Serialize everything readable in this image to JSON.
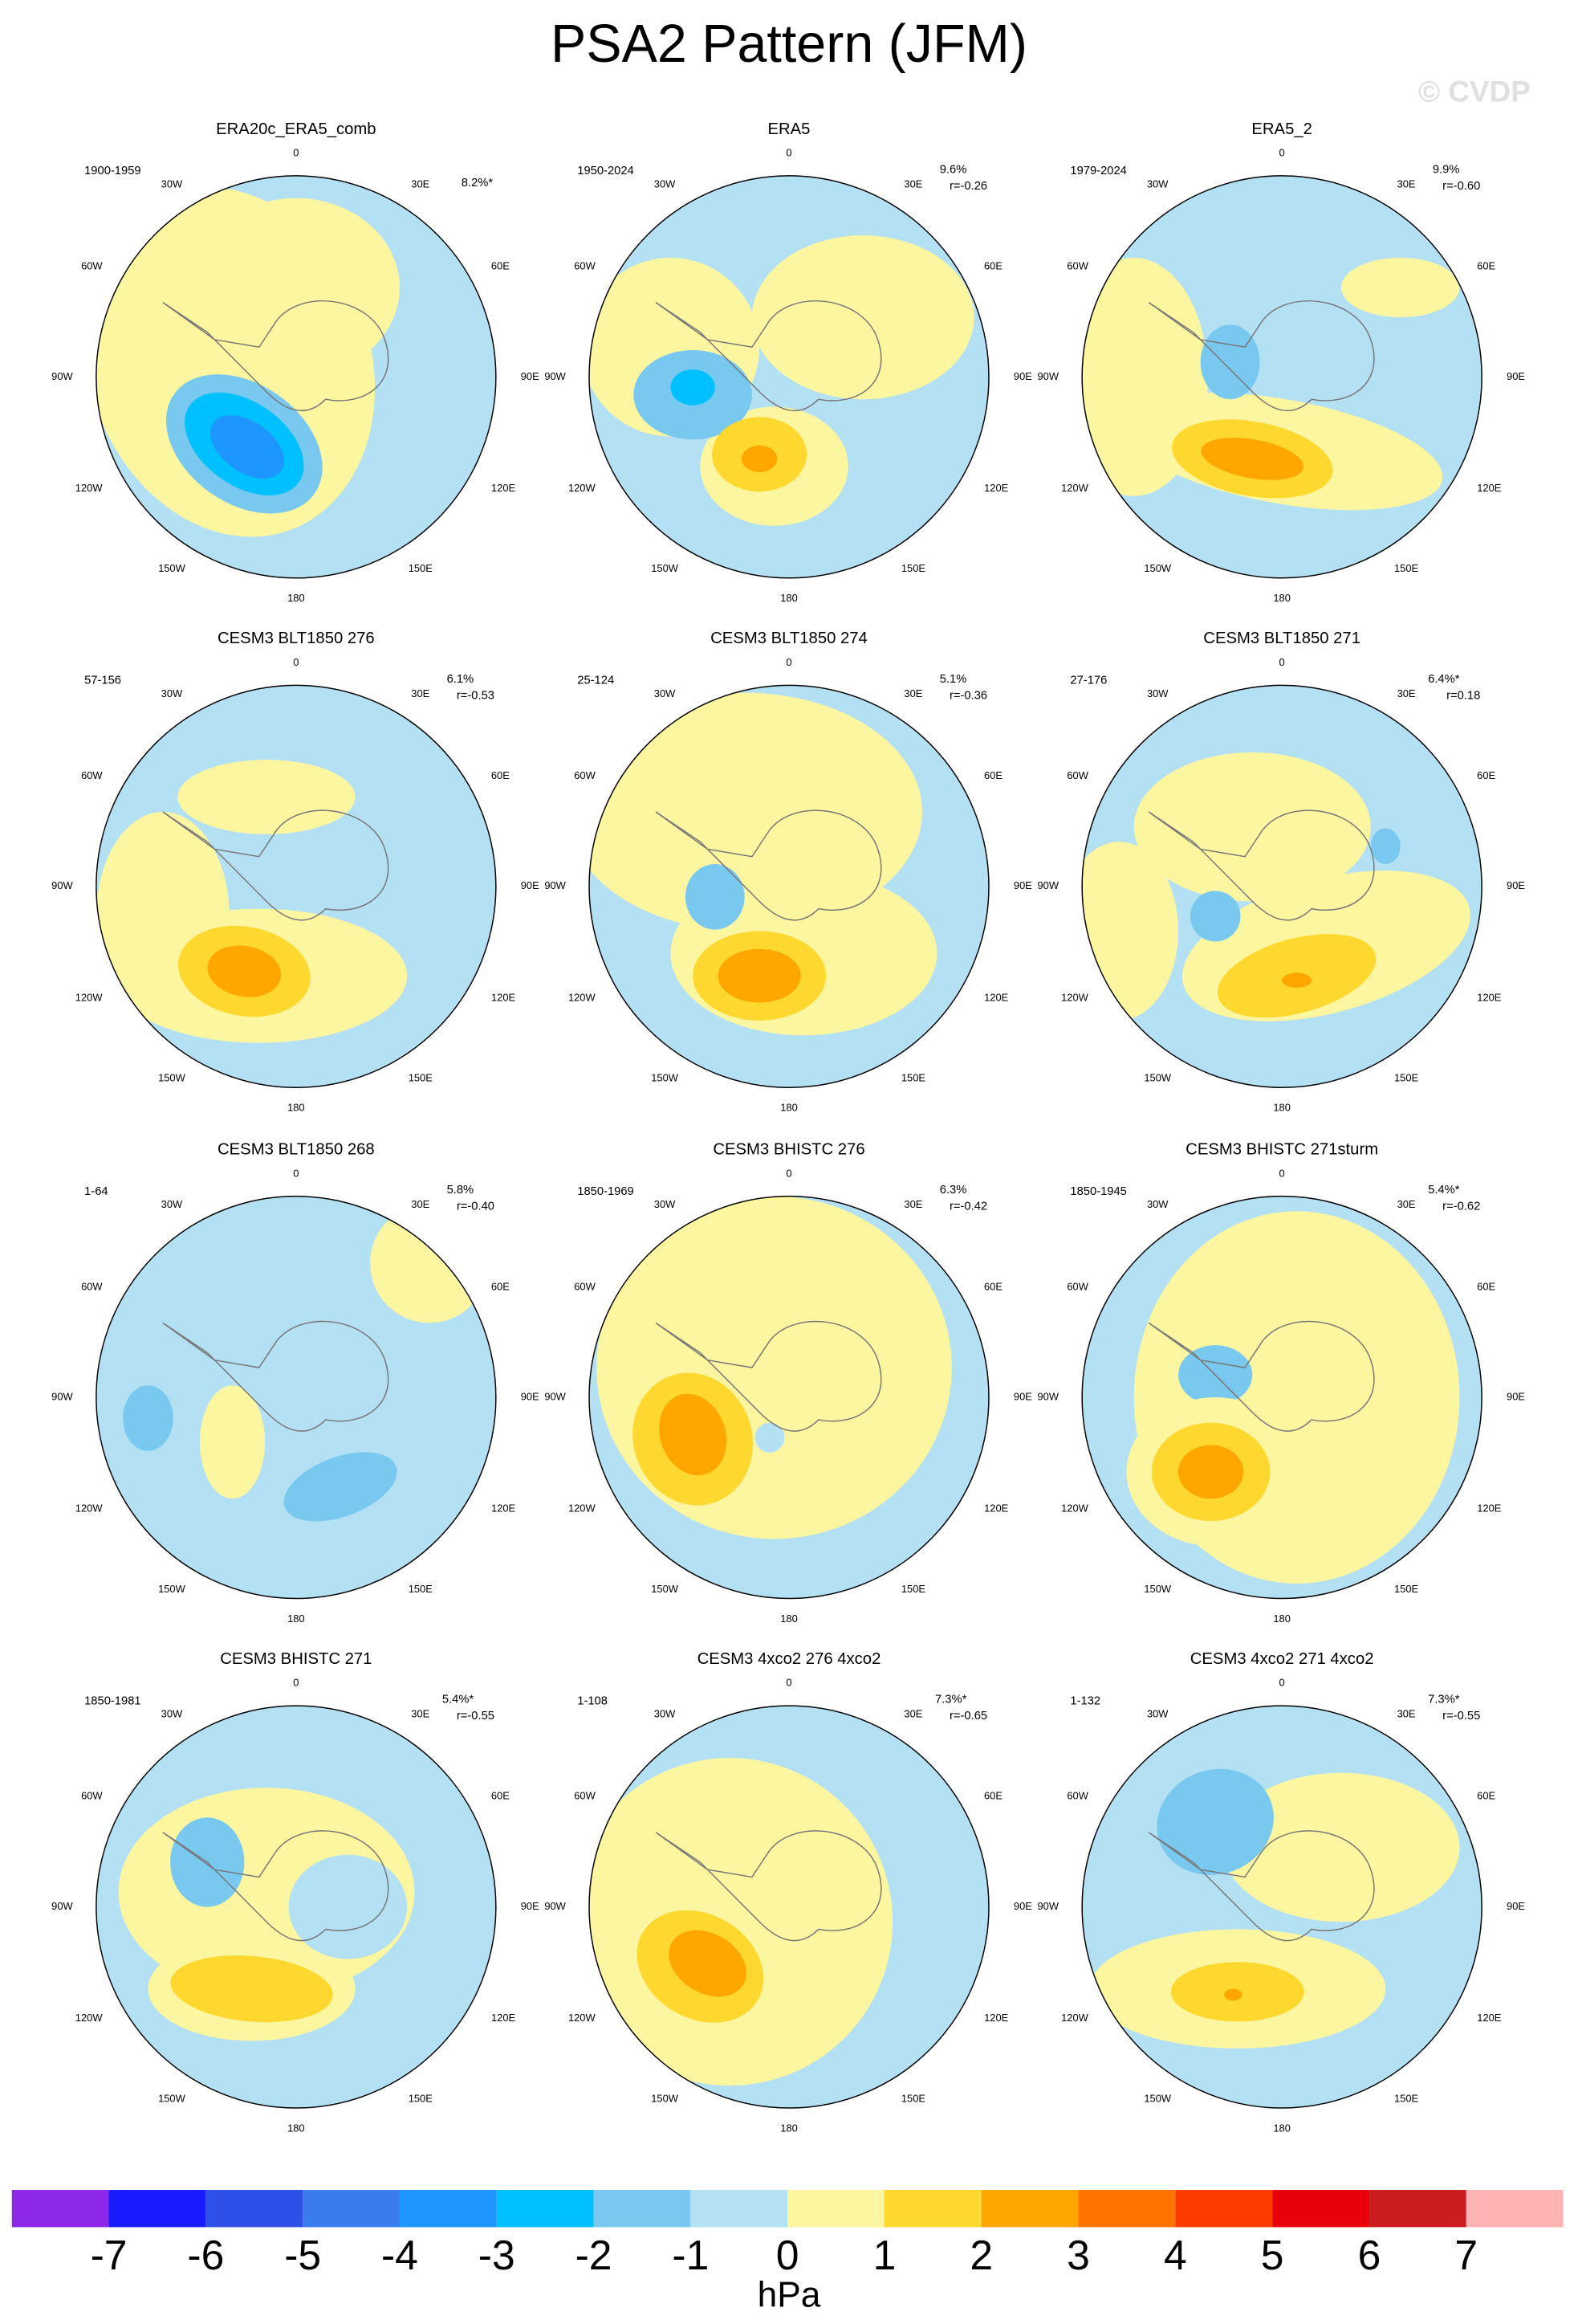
{
  "title": "PSA2 Pattern (JFM)",
  "watermark": "© CVDP",
  "longitude_labels": [
    "0",
    "30E",
    "60E",
    "90E",
    "120E",
    "150E",
    "180",
    "150W",
    "120W",
    "90W",
    "60W",
    "30W"
  ],
  "panels": [
    {
      "title": "ERA20c_ERA5_comb",
      "period": "1900-1959",
      "pct": "8.2%*"
    },
    {
      "title": "ERA5",
      "period": "1950-2024",
      "pct": "9.6%",
      "r": "r=-0.26"
    },
    {
      "title": "ERA5_2",
      "period": "1979-2024",
      "pct": "9.9%",
      "r": "r=-0.60"
    },
    {
      "title": "CESM3 BLT1850 276",
      "period": "57-156",
      "pct": "6.1%",
      "r": "r=-0.53"
    },
    {
      "title": "CESM3 BLT1850 274",
      "period": "25-124",
      "pct": "5.1%",
      "r": "r=-0.36"
    },
    {
      "title": "CESM3 BLT1850 271",
      "period": "27-176",
      "pct": "6.4%*",
      "r": "r=0.18"
    },
    {
      "title": "CESM3 BLT1850 268",
      "period": "1-64",
      "pct": "5.8%",
      "r": "r=-0.40"
    },
    {
      "title": "CESM3 BHISTC 276",
      "period": "1850-1969",
      "pct": "6.3%",
      "r": "r=-0.42"
    },
    {
      "title": "CESM3 BHISTC 271sturm",
      "period": "1850-1945",
      "pct": "5.4%*",
      "r": "r=-0.62"
    },
    {
      "title": "CESM3 BHISTC 271",
      "period": "1850-1981",
      "pct": "5.4%*",
      "r": "r=-0.55"
    },
    {
      "title": "CESM3 4xco2 276 4xco2",
      "period": "1-108",
      "pct": "7.3%*",
      "r": "r=-0.65"
    },
    {
      "title": "CESM3 4xco2 271 4xco2",
      "period": "1-132",
      "pct": "7.3%*",
      "r": "r=-0.55"
    }
  ],
  "colorbar": {
    "colors": [
      "#8c28e6",
      "#1a1aff",
      "#2e4fe8",
      "#3a7bee",
      "#1e96ff",
      "#00c0ff",
      "#79c8f0",
      "#b4e0f4",
      "#fdf6a0",
      "#fed82f",
      "#ffa600",
      "#ff7300",
      "#ff3c00",
      "#e8000a",
      "#cc1c20",
      "#ffb3b3"
    ],
    "ticks": [
      -7,
      -6,
      -5,
      -4,
      -3,
      -2,
      -1,
      0,
      1,
      2,
      3,
      4,
      5,
      6,
      7
    ],
    "label": "hPa"
  }
}
